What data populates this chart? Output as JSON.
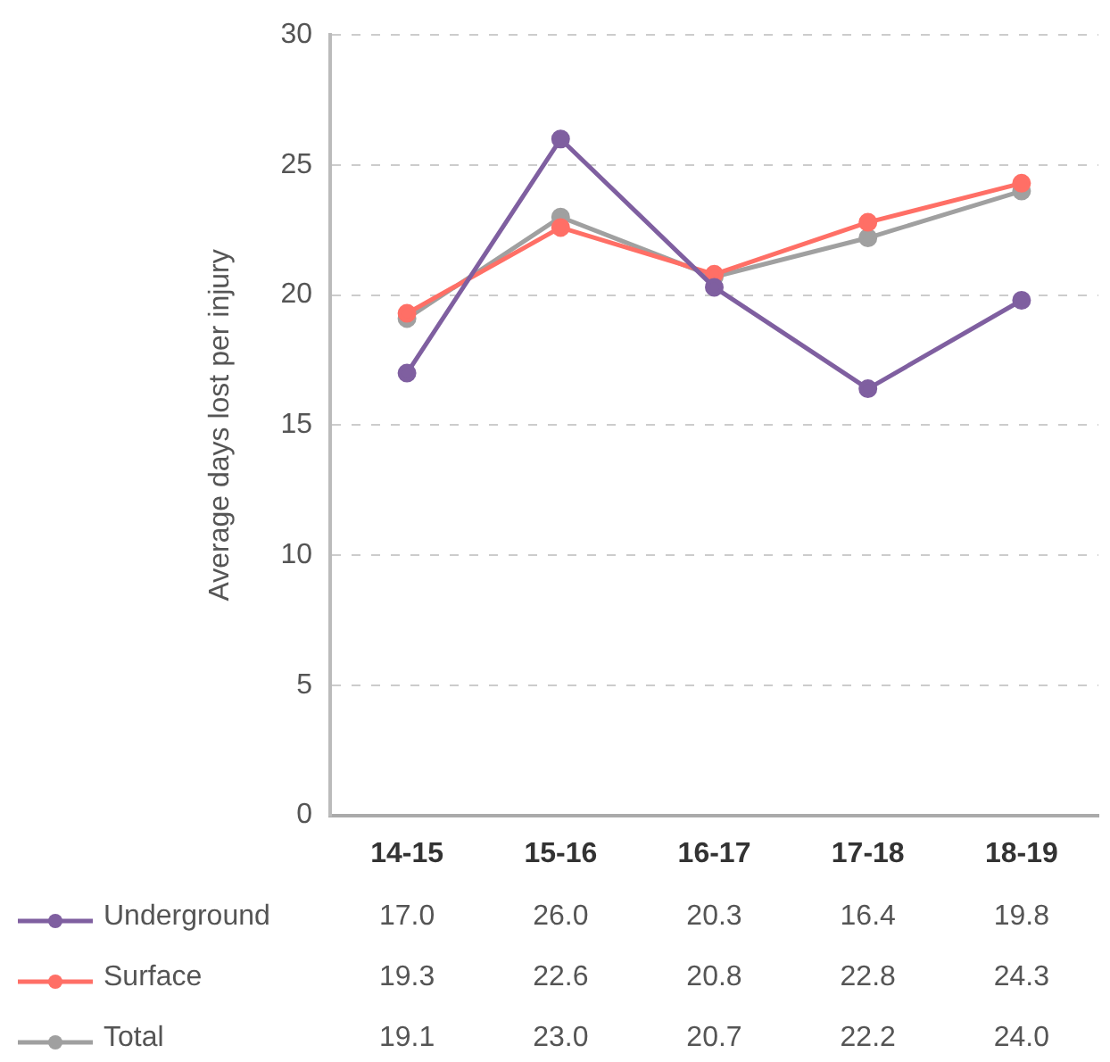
{
  "chart_data": {
    "type": "line",
    "ylabel": "Average days lost per injury",
    "categories": [
      "14-15",
      "15-16",
      "16-17",
      "17-18",
      "18-19"
    ],
    "series": [
      {
        "name": "Underground",
        "color": "#7f5fa0",
        "values": [
          17.0,
          26.0,
          20.3,
          16.4,
          19.8
        ],
        "value_labels": [
          "17.0",
          "26.0",
          "20.3",
          "16.4",
          "19.8"
        ]
      },
      {
        "name": "Surface",
        "color": "#ff6f66",
        "values": [
          19.3,
          22.6,
          20.8,
          22.8,
          24.3
        ],
        "value_labels": [
          "19.3",
          "22.6",
          "20.8",
          "22.8",
          "24.3"
        ]
      },
      {
        "name": "Total",
        "color": "#a0a0a0",
        "values": [
          19.1,
          23.0,
          20.7,
          22.2,
          24.0
        ],
        "value_labels": [
          "19.1",
          "23.0",
          "20.7",
          "22.2",
          "24.0"
        ]
      }
    ],
    "ylim": [
      0,
      30
    ],
    "yticks": [
      0,
      5,
      10,
      15,
      20,
      25,
      30
    ],
    "grid": "y",
    "legend": "bottom",
    "marker": "circle",
    "line_style": "solid"
  }
}
